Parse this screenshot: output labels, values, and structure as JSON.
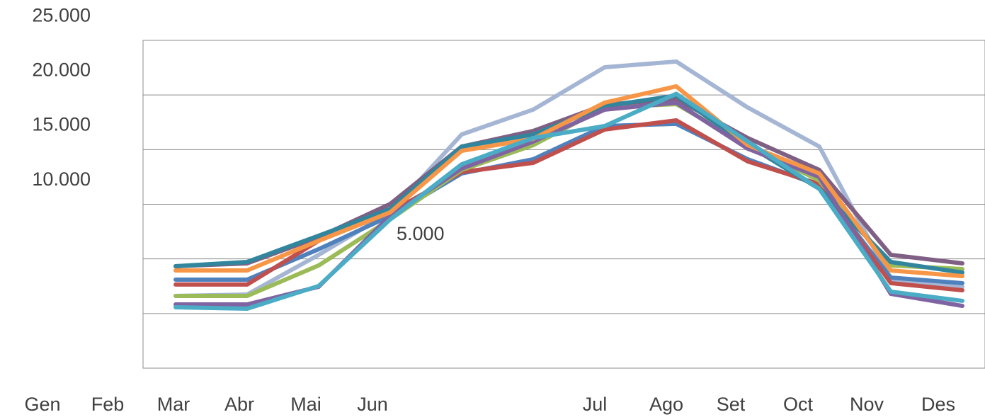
{
  "chart_data": {
    "type": "line",
    "categories": [
      "Gen",
      "Feb",
      "Mar",
      "Abr",
      "Mai",
      "Jun",
      "Jul",
      "Ago",
      "Set",
      "Oct",
      "Nov",
      "Des"
    ],
    "ylim": [
      0,
      30000
    ],
    "yticks": [
      {
        "value": 5000,
        "label": "5.000"
      },
      {
        "value": 10000,
        "label": "10.000"
      },
      {
        "value": 15000,
        "label": "15.000"
      },
      {
        "value": 20000,
        "label": "20.000"
      },
      {
        "value": 25000,
        "label": "25.000"
      }
    ],
    "grid": true,
    "series": [
      {
        "color": "#a5b6d5",
        "values": [
          6610,
          6740,
          10370,
          14260,
          21390,
          23660,
          27540,
          28060,
          23850,
          20280,
          8100,
          7450
        ]
      },
      {
        "color": "#4f81bd",
        "values": [
          8100,
          8100,
          10890,
          13930,
          17820,
          19120,
          22160,
          22360,
          19120,
          16720,
          8290,
          7780
        ]
      },
      {
        "color": "#c0504d",
        "values": [
          7650,
          7650,
          11660,
          14260,
          17950,
          18790,
          21840,
          22680,
          18920,
          16850,
          7780,
          7130
        ]
      },
      {
        "color": "#9bbb59",
        "values": [
          6610,
          6610,
          9400,
          13610,
          18140,
          20410,
          23850,
          24170,
          20410,
          17170,
          9400,
          9070
        ]
      },
      {
        "color": "#7f6084",
        "values": [
          9330,
          9590,
          11990,
          15030,
          20280,
          21710,
          24110,
          24620,
          21060,
          18140,
          10370,
          9590
        ]
      },
      {
        "color": "#31859c",
        "values": [
          9330,
          9720,
          12120,
          14580,
          20280,
          21380,
          23980,
          24950,
          20410,
          16410,
          9720,
          8750
        ]
      },
      {
        "color": "#8064a2",
        "values": [
          5830,
          5830,
          7450,
          13930,
          18270,
          20740,
          23660,
          24300,
          20090,
          17500,
          6800,
          5700
        ]
      },
      {
        "color": "#f79646",
        "values": [
          8940,
          8940,
          11660,
          14260,
          19890,
          20990,
          24300,
          25790,
          20410,
          17820,
          8940,
          8420
        ]
      },
      {
        "color": "#4bacc6",
        "values": [
          5570,
          5440,
          7520,
          13610,
          18660,
          21060,
          22160,
          25110,
          20740,
          16410,
          7000,
          6160
        ]
      }
    ]
  }
}
